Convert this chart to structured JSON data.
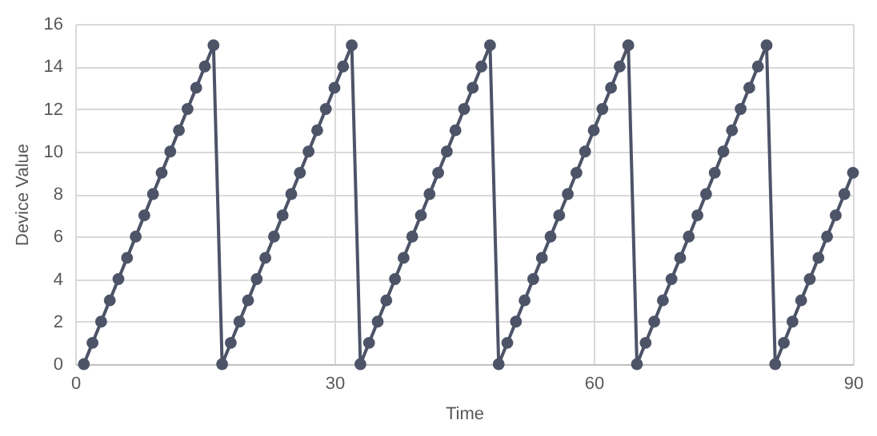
{
  "chart_data": {
    "type": "line",
    "xlabel": "Time",
    "ylabel": "Device Value",
    "x": [
      1,
      2,
      3,
      4,
      5,
      6,
      7,
      8,
      9,
      10,
      11,
      12,
      13,
      14,
      15,
      16,
      17,
      18,
      19,
      20,
      21,
      22,
      23,
      24,
      25,
      26,
      27,
      28,
      29,
      30,
      31,
      32,
      33,
      34,
      35,
      36,
      37,
      38,
      39,
      40,
      41,
      42,
      43,
      44,
      45,
      46,
      47,
      48,
      49,
      50,
      51,
      52,
      53,
      54,
      55,
      56,
      57,
      58,
      59,
      60,
      61,
      62,
      63,
      64,
      65,
      66,
      67,
      68,
      69,
      70,
      71,
      72,
      73,
      74,
      75,
      76,
      77,
      78,
      79,
      80,
      81,
      82,
      83,
      84,
      85,
      86,
      87,
      88,
      89,
      90
    ],
    "series": [
      {
        "color": "#4d5468",
        "values": [
          0,
          1,
          2,
          3,
          4,
          5,
          6,
          7,
          8,
          9,
          10,
          11,
          12,
          13,
          14,
          15,
          0,
          1,
          2,
          3,
          4,
          5,
          6,
          7,
          8,
          9,
          10,
          11,
          12,
          13,
          14,
          15,
          0,
          1,
          2,
          3,
          4,
          5,
          6,
          7,
          8,
          9,
          10,
          11,
          12,
          13,
          14,
          15,
          0,
          1,
          2,
          3,
          4,
          5,
          6,
          7,
          8,
          9,
          10,
          11,
          12,
          13,
          14,
          15,
          0,
          1,
          2,
          3,
          4,
          5,
          6,
          7,
          8,
          9,
          10,
          11,
          12,
          13,
          14,
          15,
          0,
          1,
          2,
          3,
          4,
          5,
          6,
          7,
          8,
          9
        ]
      }
    ],
    "xlim": [
      0,
      90
    ],
    "xticks": [
      0,
      30,
      60,
      90
    ],
    "ylim": [
      0,
      16
    ],
    "yticks": [
      0,
      2,
      4,
      6,
      8,
      10,
      12,
      14,
      16
    ],
    "grid": true,
    "marker": "circle",
    "line_style": "solid"
  }
}
